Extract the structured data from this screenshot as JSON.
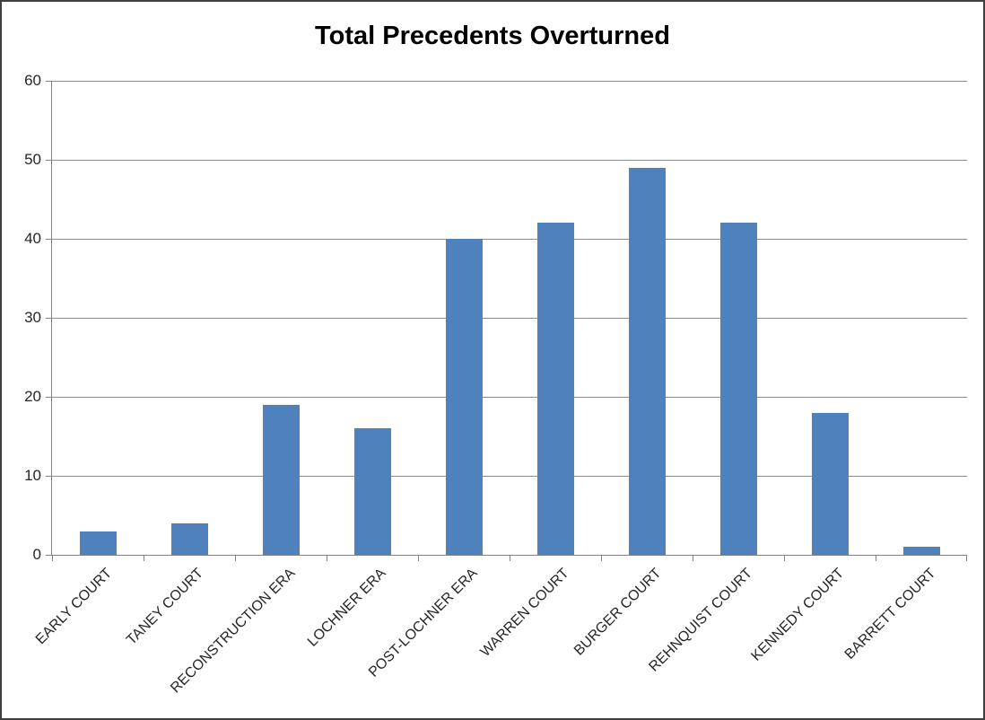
{
  "chart_data": {
    "type": "bar",
    "title": "Total Precedents Overturned",
    "categories": [
      "EARLY COURT",
      "TANEY COURT",
      "RECONSTRUCTION ERA",
      "LOCHNER ERA",
      "POST-LOCHNER ERA",
      "WARREN COURT",
      "BURGER COURT",
      "REHNQUIST COURT",
      "KENNEDY COURT",
      "BARRETT COURT"
    ],
    "values": [
      3,
      4,
      19,
      16,
      40,
      42,
      49,
      42,
      18,
      1
    ],
    "xlabel": "",
    "ylabel": "",
    "ylim": [
      0,
      60
    ],
    "yticks": [
      0,
      10,
      20,
      30,
      40,
      50,
      60
    ],
    "grid": true,
    "legend": "none",
    "colors": {
      "bar": "#4f81bd",
      "gridline": "#8c8c8c",
      "axis": "#808080",
      "label": "#262626",
      "title": "#000000"
    }
  }
}
